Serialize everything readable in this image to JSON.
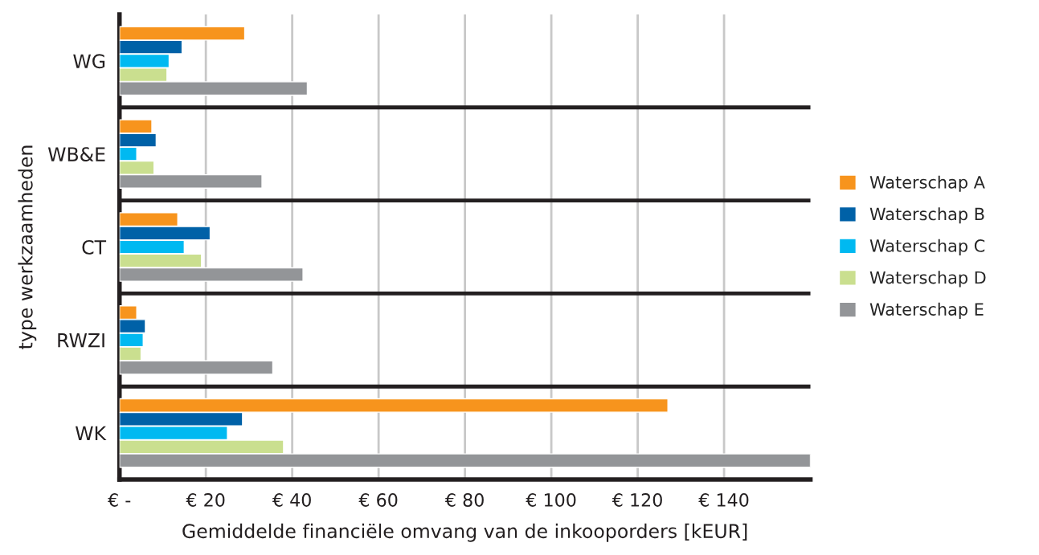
{
  "chart_data": {
    "type": "bar",
    "orientation": "horizontal",
    "xlabel": "Gemiddelde financiële omvang van de inkooporders [kEUR]",
    "ylabel": "type werkzaamheden",
    "categories": [
      "WG",
      "WB&E",
      "CT",
      "RWZI",
      "WK"
    ],
    "series": [
      {
        "name": "Waterschap A",
        "color": "#f7941d",
        "values": [
          29,
          7.5,
          13.5,
          4,
          127
        ]
      },
      {
        "name": "Waterschap B",
        "color": "#0061a7",
        "values": [
          14.5,
          8.5,
          21,
          6,
          28.5
        ]
      },
      {
        "name": "Waterschap C",
        "color": "#00b9f1",
        "values": [
          11.5,
          4,
          15,
          5.5,
          25
        ]
      },
      {
        "name": "Waterschap D",
        "color": "#cadf8f",
        "values": [
          11,
          8,
          19,
          5,
          38
        ]
      },
      {
        "name": "Waterschap E",
        "color": "#939598",
        "values": [
          43.5,
          33,
          42.5,
          35.5,
          160
        ]
      }
    ],
    "xlim": [
      0,
      160
    ],
    "xticks": [
      {
        "value": 0,
        "label": "€ -"
      },
      {
        "value": 20,
        "label": "€ 20"
      },
      {
        "value": 40,
        "label": "€ 40"
      },
      {
        "value": 60,
        "label": "€ 60"
      },
      {
        "value": 80,
        "label": "€ 80"
      },
      {
        "value": 100,
        "label": "€ 100"
      },
      {
        "value": 120,
        "label": "€ 120"
      },
      {
        "value": 140,
        "label": "€ 140"
      }
    ],
    "grid": "x",
    "legend": "right"
  }
}
